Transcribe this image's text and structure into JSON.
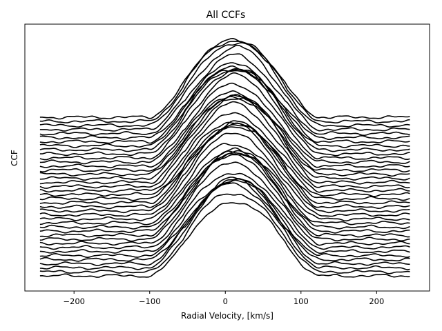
{
  "chart_data": {
    "type": "line",
    "title": "All CCFs",
    "xlabel": "Radial Velocity, [km/s]",
    "ylabel": "CCF",
    "xlim": [
      -265,
      270
    ],
    "x_ticks": [
      -200,
      -100,
      0,
      100,
      200
    ],
    "x_tick_labels": [
      "−200",
      "−100",
      "0",
      "100",
      "200"
    ],
    "y_ticks_shown": false,
    "grid": false,
    "legend": "none",
    "line_color": "#000000",
    "x_range_of_each_curve": [
      -245,
      245
    ],
    "n_curves": 40,
    "profile": {
      "shape": "broad symmetric bump of stacked cross-correlation functions, flat continuum outside ±100 km/s",
      "center_kms": 12,
      "half_width_kms": 112,
      "continuum_offsets_top_to_bottom": 40
    }
  }
}
